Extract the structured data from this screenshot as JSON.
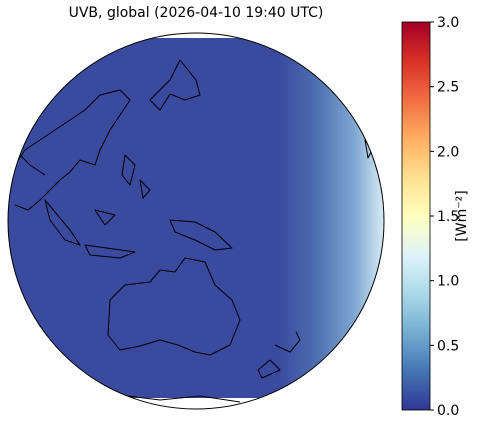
{
  "map": {
    "title": "UVB, global (2026-04-10 19:40 UTC)",
    "colorbar": {
      "label": "[Wm⁻²]",
      "lim": [
        0,
        3
      ],
      "ticks": [
        {
          "value": 0,
          "label": "0.0"
        },
        0.5,
        {
          "value": 1,
          "label": "1.0"
        },
        1.5,
        {
          "value": 2,
          "label": "2.0"
        },
        2.5,
        {
          "value": 3,
          "label": "3.0"
        }
      ],
      "colormap": [
        "#313695",
        "#4575b4",
        "#74add1",
        "#abd9e9",
        "#e0f3f8",
        "#ffffbf",
        "#fee090",
        "#fdae61",
        "#f46d43",
        "#d73027",
        "#a50026"
      ]
    }
  }
}
